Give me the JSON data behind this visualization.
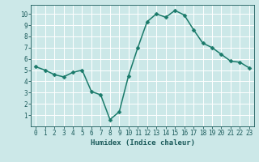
{
  "x": [
    0,
    1,
    2,
    3,
    4,
    5,
    6,
    7,
    8,
    9,
    10,
    11,
    12,
    13,
    14,
    15,
    16,
    17,
    18,
    19,
    20,
    21,
    22,
    23
  ],
  "y": [
    5.3,
    5.0,
    4.6,
    4.4,
    4.8,
    5.0,
    3.1,
    2.8,
    0.6,
    1.3,
    4.5,
    7.0,
    9.3,
    10.0,
    9.7,
    10.3,
    9.9,
    8.6,
    7.4,
    7.0,
    6.4,
    5.8,
    5.7,
    5.2
  ],
  "xlabel": "Humidex (Indice chaleur)",
  "line_color": "#1a7a6a",
  "marker_color": "#1a7a6a",
  "bg_color": "#cce8e8",
  "grid_color": "#ffffff",
  "tick_label_color": "#1a5a5a",
  "xlabel_color": "#1a5a5a",
  "ylim": [
    0.0,
    10.8
  ],
  "xlim": [
    -0.5,
    23.5
  ],
  "yticks": [
    1,
    2,
    3,
    4,
    5,
    6,
    7,
    8,
    9,
    10
  ],
  "xticks": [
    0,
    1,
    2,
    3,
    4,
    5,
    6,
    7,
    8,
    9,
    10,
    11,
    12,
    13,
    14,
    15,
    16,
    17,
    18,
    19,
    20,
    21,
    22,
    23
  ],
  "xtick_labels": [
    "0",
    "1",
    "2",
    "3",
    "4",
    "5",
    "6",
    "7",
    "8",
    "9",
    "10",
    "11",
    "12",
    "13",
    "14",
    "15",
    "16",
    "17",
    "18",
    "19",
    "20",
    "21",
    "22",
    "23"
  ],
  "font_family": "monospace",
  "linewidth": 1.1,
  "markersize": 2.5,
  "tick_fontsize": 5.5,
  "xlabel_fontsize": 6.5
}
